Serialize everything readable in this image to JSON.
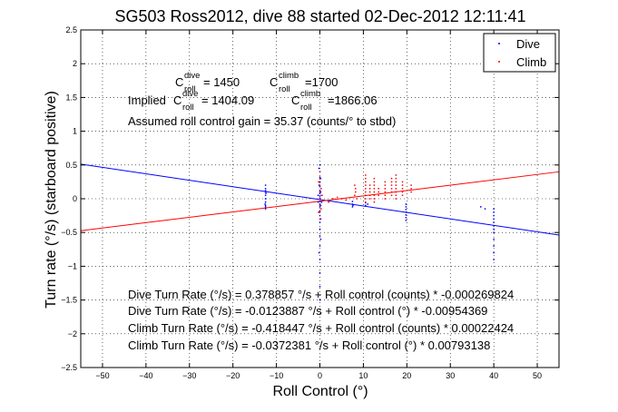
{
  "chart_data": {
    "type": "scatter",
    "title": "SG503 Ross2012, dive 88 started 02-Dec-2012 12:11:41",
    "xlabel": "Roll Control (°)",
    "ylabel": "Turn rate (°/s) (starboard positive)",
    "xlim": [
      -55,
      55
    ],
    "ylim": [
      -2.5,
      2.5
    ],
    "xticks": [
      -50,
      -40,
      -30,
      -20,
      -10,
      0,
      10,
      20,
      30,
      40,
      50
    ],
    "yticks": [
      -2.5,
      -2,
      -1.5,
      -1,
      -0.5,
      0,
      0.5,
      1,
      1.5,
      2,
      2.5
    ],
    "grid": true,
    "legend": {
      "position": "top-right",
      "entries": [
        {
          "label": "Dive",
          "color": "#0000ff"
        },
        {
          "label": "Climb",
          "color": "#ff0000"
        }
      ]
    },
    "annotations": {
      "c_roll_dive": {
        "sym": "C",
        "sup": "dive",
        "sub": "roll",
        "rest": " = 1450"
      },
      "c_roll_climb": {
        "sym": "C",
        "sup": "climb",
        "sub": "roll",
        "rest": "=1700"
      },
      "implied_prefix": "Implied ",
      "implied_dive": {
        "sym": "C",
        "sup": "dive",
        "sub": "roll",
        "rest": " = 1404.09"
      },
      "implied_climb": {
        "sym": "C",
        "sup": "climb",
        "sub": "roll",
        "rest": " =1866.06"
      },
      "gain": "Assumed roll control gain = 35.37 (counts/° to stbd)",
      "fit_lines": [
        "Dive Turn Rate (°/s) = 0.378857 °/s + Roll control (counts) * -0.000269824",
        "Dive Turn Rate (°/s) = -0.0123887 °/s + Roll control (°) * -0.00954369",
        "Climb Turn Rate (°/s) = -0.418447 °/s + Roll control (counts) * 0.00022424",
        "Climb Turn Rate (°/s) = -0.0372381 °/s + Roll control (°) * 0.00793138"
      ]
    },
    "series": [
      {
        "name": "Dive",
        "color": "#0000ff",
        "fit": {
          "intercept": -0.0123887,
          "slope": -0.00954369
        },
        "points": [
          [
            -12.5,
            -0.15
          ],
          [
            -12.5,
            -0.1
          ],
          [
            -12.5,
            -0.05
          ],
          [
            -12.5,
            0.0
          ],
          [
            -12.5,
            0.05
          ],
          [
            -12.5,
            0.1
          ],
          [
            -12.5,
            0.15
          ],
          [
            -12.5,
            0.2
          ],
          [
            -12.6,
            -0.08
          ],
          [
            -12.4,
            0.08
          ],
          [
            -12.5,
            -0.12
          ],
          [
            -12.5,
            0.12
          ],
          [
            0,
            -1.5
          ],
          [
            0,
            -1.3
          ],
          [
            0,
            -1.1
          ],
          [
            0,
            -0.9
          ],
          [
            0,
            -0.7
          ],
          [
            0,
            -0.55
          ],
          [
            0,
            -0.45
          ],
          [
            0,
            -0.35
          ],
          [
            0,
            -0.25
          ],
          [
            0,
            -0.18
          ],
          [
            0,
            -0.12
          ],
          [
            0,
            -0.08
          ],
          [
            0,
            -0.04
          ],
          [
            0,
            0.0
          ],
          [
            0,
            0.04
          ],
          [
            0,
            0.08
          ],
          [
            0,
            0.12
          ],
          [
            0,
            0.18
          ],
          [
            0,
            0.25
          ],
          [
            0,
            0.32
          ],
          [
            0,
            0.4
          ],
          [
            0,
            0.5
          ],
          [
            0.2,
            -0.6
          ],
          [
            0.2,
            -0.3
          ],
          [
            0.2,
            -0.1
          ],
          [
            0.2,
            0.1
          ],
          [
            0.2,
            0.3
          ],
          [
            -0.2,
            -0.8
          ],
          [
            -0.2,
            -0.2
          ],
          [
            -0.2,
            0.2
          ],
          [
            -0.2,
            0.45
          ],
          [
            0.4,
            -0.05
          ],
          [
            0.4,
            0.05
          ],
          [
            -0.4,
            -0.05
          ],
          [
            -0.4,
            0.05
          ],
          [
            7.5,
            -0.12
          ],
          [
            7.5,
            -0.08
          ],
          [
            7.5,
            -0.04
          ],
          [
            7.6,
            -0.1
          ],
          [
            10.5,
            -0.1
          ],
          [
            10.5,
            -0.06
          ],
          [
            11,
            -0.08
          ],
          [
            19.8,
            -0.32
          ],
          [
            19.8,
            -0.28
          ],
          [
            19.8,
            -0.24
          ],
          [
            19.8,
            -0.2
          ],
          [
            19.8,
            -0.16
          ],
          [
            19.8,
            -0.12
          ],
          [
            19.8,
            -0.08
          ],
          [
            37,
            -0.12
          ],
          [
            38,
            -0.15
          ],
          [
            40,
            -0.9
          ],
          [
            40,
            -0.8
          ],
          [
            40,
            -0.7
          ],
          [
            40,
            -0.6
          ],
          [
            40,
            -0.5
          ],
          [
            40,
            -0.45
          ],
          [
            40,
            -0.4
          ],
          [
            40,
            -0.35
          ],
          [
            40,
            -0.3
          ],
          [
            40,
            -0.25
          ],
          [
            40,
            -0.2
          ],
          [
            40,
            -0.15
          ]
        ]
      },
      {
        "name": "Climb",
        "color": "#ff0000",
        "fit": {
          "intercept": -0.0372381,
          "slope": 0.00793138
        },
        "points": [
          [
            0,
            -0.3
          ],
          [
            0,
            -0.2
          ],
          [
            0,
            -0.1
          ],
          [
            0,
            0.0
          ],
          [
            0,
            0.1
          ],
          [
            0,
            0.2
          ],
          [
            0,
            0.3
          ],
          [
            0,
            0.4
          ],
          [
            0.3,
            -0.15
          ],
          [
            0.3,
            0.15
          ],
          [
            -0.3,
            -0.2
          ],
          [
            -0.3,
            0.25
          ],
          [
            0.5,
            0.05
          ],
          [
            2,
            -0.05
          ],
          [
            3,
            0.0
          ],
          [
            4,
            0.02
          ],
          [
            5,
            0.0
          ],
          [
            6,
            -0.02
          ],
          [
            8,
            0.05
          ],
          [
            8.2,
            0.1
          ],
          [
            8.2,
            0.15
          ],
          [
            8,
            0.2
          ],
          [
            8.5,
            0.0
          ],
          [
            10.5,
            -0.05
          ],
          [
            10.5,
            0.0
          ],
          [
            10.5,
            0.05
          ],
          [
            10.5,
            0.1
          ],
          [
            10.5,
            0.15
          ],
          [
            10.5,
            0.2
          ],
          [
            10.5,
            0.25
          ],
          [
            10.5,
            0.3
          ],
          [
            10.5,
            0.35
          ],
          [
            11.5,
            0.0
          ],
          [
            11.5,
            0.05
          ],
          [
            11.5,
            0.1
          ],
          [
            11.5,
            0.15
          ],
          [
            11.5,
            0.2
          ],
          [
            12.5,
            -0.05
          ],
          [
            12.5,
            0.0
          ],
          [
            12.5,
            0.05
          ],
          [
            12.5,
            0.1
          ],
          [
            12.5,
            0.15
          ],
          [
            12.5,
            0.2
          ],
          [
            12.5,
            0.25
          ],
          [
            12.5,
            0.3
          ],
          [
            13.5,
            0.05
          ],
          [
            13.5,
            0.1
          ],
          [
            13.5,
            0.15
          ],
          [
            15,
            0.0
          ],
          [
            15,
            0.05
          ],
          [
            15,
            0.1
          ],
          [
            15,
            0.15
          ],
          [
            15,
            0.2
          ],
          [
            15,
            0.25
          ],
          [
            16.5,
            0.05
          ],
          [
            16.5,
            0.1
          ],
          [
            16.5,
            0.15
          ],
          [
            16.5,
            0.2
          ],
          [
            16.5,
            0.25
          ],
          [
            16.5,
            0.3
          ],
          [
            17.5,
            0.0
          ],
          [
            17.5,
            0.05
          ],
          [
            17.5,
            0.1
          ],
          [
            17.5,
            0.15
          ],
          [
            17.5,
            0.2
          ],
          [
            17.5,
            0.25
          ],
          [
            17.5,
            0.3
          ],
          [
            17.5,
            0.35
          ],
          [
            19,
            0.05
          ],
          [
            19,
            0.1
          ],
          [
            19,
            0.15
          ],
          [
            19,
            0.2
          ],
          [
            19,
            0.25
          ],
          [
            21,
            0.1
          ],
          [
            21,
            0.15
          ],
          [
            21,
            0.2
          ]
        ]
      }
    ]
  }
}
